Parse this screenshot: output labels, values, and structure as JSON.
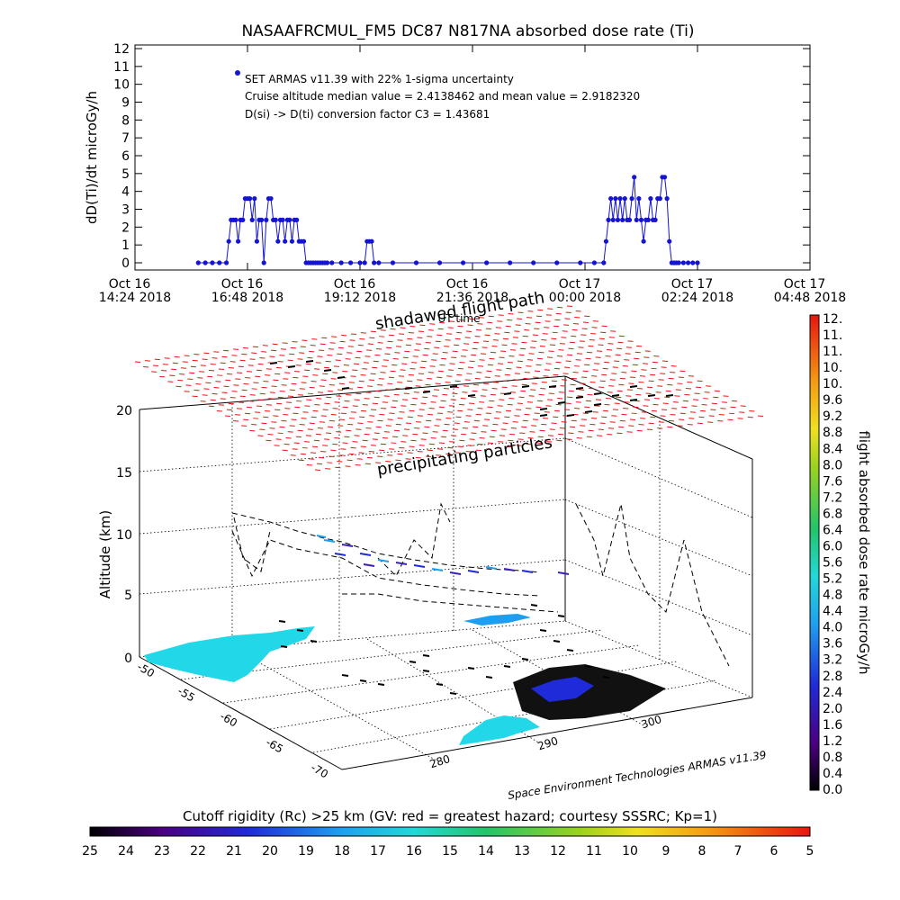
{
  "chart_data": [
    {
      "type": "scatter",
      "title": "NASAAFRCMUL_FM5 DC87 N817NA absorbed dose rate (Ti)",
      "ylabel": "dD(Ti)/dt microGy/h",
      "xlabel": "UT time",
      "ylim": [
        0,
        12
      ],
      "yticks": [
        "0",
        "1",
        "2",
        "3",
        "4",
        "5",
        "6",
        "7",
        "8",
        "9",
        "10",
        "11",
        "12"
      ],
      "xlim_hours": [
        0,
        14.4
      ],
      "xticks": [
        {
          "h": 0,
          "l1": "Oct  16",
          "l2": "14:24 2018"
        },
        {
          "h": 2.4,
          "l1": "Oct  16",
          "l2": "16:48 2018"
        },
        {
          "h": 4.8,
          "l1": "Oct  16",
          "l2": "19:12 2018"
        },
        {
          "h": 7.2,
          "l1": "Oct  16",
          "l2": "21:36 2018"
        },
        {
          "h": 9.6,
          "l1": "Oct  17",
          "l2": "00:00 2018"
        },
        {
          "h": 12.0,
          "l1": "Oct  17",
          "l2": "02:24 2018"
        },
        {
          "h": 14.4,
          "l1": "Oct  17",
          "l2": "04:48 2018"
        }
      ],
      "legend": "SET ARMAS v11.39 with 22% 1-sigma uncertainty",
      "annotations": [
        "Cruise altitude median value = 2.4138462 and mean value = 2.9182320",
        "D(si) -> D(ti) conversion factor C3 = 1.43681"
      ],
      "series": [
        {
          "color": "#1414d2",
          "x": [
            1.35,
            1.5,
            1.65,
            1.8,
            1.95,
            2.0,
            2.05,
            2.1,
            2.15,
            2.2,
            2.25,
            2.3,
            2.35,
            2.4,
            2.45,
            2.5,
            2.55,
            2.6,
            2.65,
            2.7,
            2.75,
            2.8,
            2.85,
            2.9,
            2.95,
            3.0,
            3.05,
            3.1,
            3.15,
            3.2,
            3.25,
            3.3,
            3.35,
            3.4,
            3.45,
            3.5,
            3.55,
            3.6,
            3.65,
            3.7,
            3.75,
            3.8,
            3.85,
            3.9,
            3.95,
            4.0,
            4.05,
            4.1,
            4.2,
            4.4,
            4.6,
            4.8,
            4.9,
            4.95,
            5.0,
            5.05,
            5.1,
            5.2,
            5.5,
            6.0,
            6.5,
            7.0,
            7.5,
            8.0,
            8.5,
            9.0,
            9.5,
            9.8,
            10.0,
            10.05,
            10.1,
            10.15,
            10.2,
            10.25,
            10.3,
            10.35,
            10.4,
            10.45,
            10.5,
            10.55,
            10.6,
            10.65,
            10.7,
            10.75,
            10.8,
            10.85,
            10.9,
            10.95,
            11.0,
            11.05,
            11.1,
            11.15,
            11.2,
            11.25,
            11.3,
            11.35,
            11.4,
            11.45,
            11.5,
            11.55,
            11.6,
            11.7,
            11.8,
            11.9,
            12.0
          ],
          "y": [
            0,
            0,
            0,
            0,
            0,
            1.2,
            2.4,
            2.4,
            2.4,
            1.2,
            2.4,
            2.4,
            3.6,
            3.6,
            3.6,
            2.4,
            3.6,
            1.2,
            2.4,
            2.4,
            0,
            2.4,
            3.6,
            3.6,
            2.4,
            2.4,
            1.2,
            2.4,
            2.4,
            1.2,
            2.4,
            2.4,
            1.2,
            2.4,
            2.4,
            1.2,
            1.2,
            1.2,
            0,
            0,
            0,
            0,
            0,
            0,
            0,
            0,
            0,
            0,
            0,
            0,
            0,
            0,
            0,
            1.2,
            1.2,
            1.2,
            0,
            0,
            0,
            0,
            0,
            0,
            0,
            0,
            0,
            0,
            0,
            0,
            0,
            1.2,
            2.4,
            3.6,
            2.4,
            3.6,
            2.4,
            3.6,
            2.4,
            3.6,
            2.4,
            2.4,
            3.6,
            4.8,
            2.4,
            3.6,
            2.4,
            1.2,
            2.4,
            2.4,
            3.6,
            2.4,
            2.4,
            3.6,
            3.6,
            4.8,
            4.8,
            3.6,
            1.2,
            0,
            0,
            0,
            0,
            0,
            0,
            0,
            0
          ]
        }
      ]
    },
    {
      "type": "heatmap",
      "ylabel": "Altitude (km)",
      "zticks": [
        "0",
        "5",
        "10",
        "15",
        "20"
      ],
      "lat_ticks": [
        "-50",
        "-55",
        "-60",
        "-65",
        "-70"
      ],
      "lon_ticks": [
        "280",
        "290",
        "300"
      ],
      "annotations": [
        "shadawed flight path",
        "precipitating particles"
      ],
      "colorbar_label": "flight absorbed dose rate microGy/h",
      "colorbar_ticks": [
        "12.",
        "11.",
        "11.",
        "10.",
        "10.",
        "9.6",
        "9.2",
        "8.8",
        "8.4",
        "8.0",
        "7.6",
        "7.2",
        "6.8",
        "6.4",
        "6.0",
        "5.6",
        "5.2",
        "4.8",
        "4.4",
        "4.0",
        "3.6",
        "3.2",
        "2.8",
        "2.4",
        "2.0",
        "1.6",
        "1.2",
        "0.8",
        "0.4",
        "0.0"
      ],
      "credit": "Space Environment Technologies ARMAS v11.39"
    },
    {
      "type": "heatmap",
      "title": "Cutoff rigidity (Rc) >25 km (GV: red = greatest hazard; courtesy SSSRC; Kp=1)",
      "colorbar_ticks": [
        "25",
        "24",
        "23",
        "22",
        "21",
        "20",
        "19",
        "18",
        "17",
        "16",
        "15",
        "14",
        "13",
        "12",
        "11",
        "10",
        "9",
        "8",
        "7",
        "6",
        "5"
      ]
    }
  ]
}
